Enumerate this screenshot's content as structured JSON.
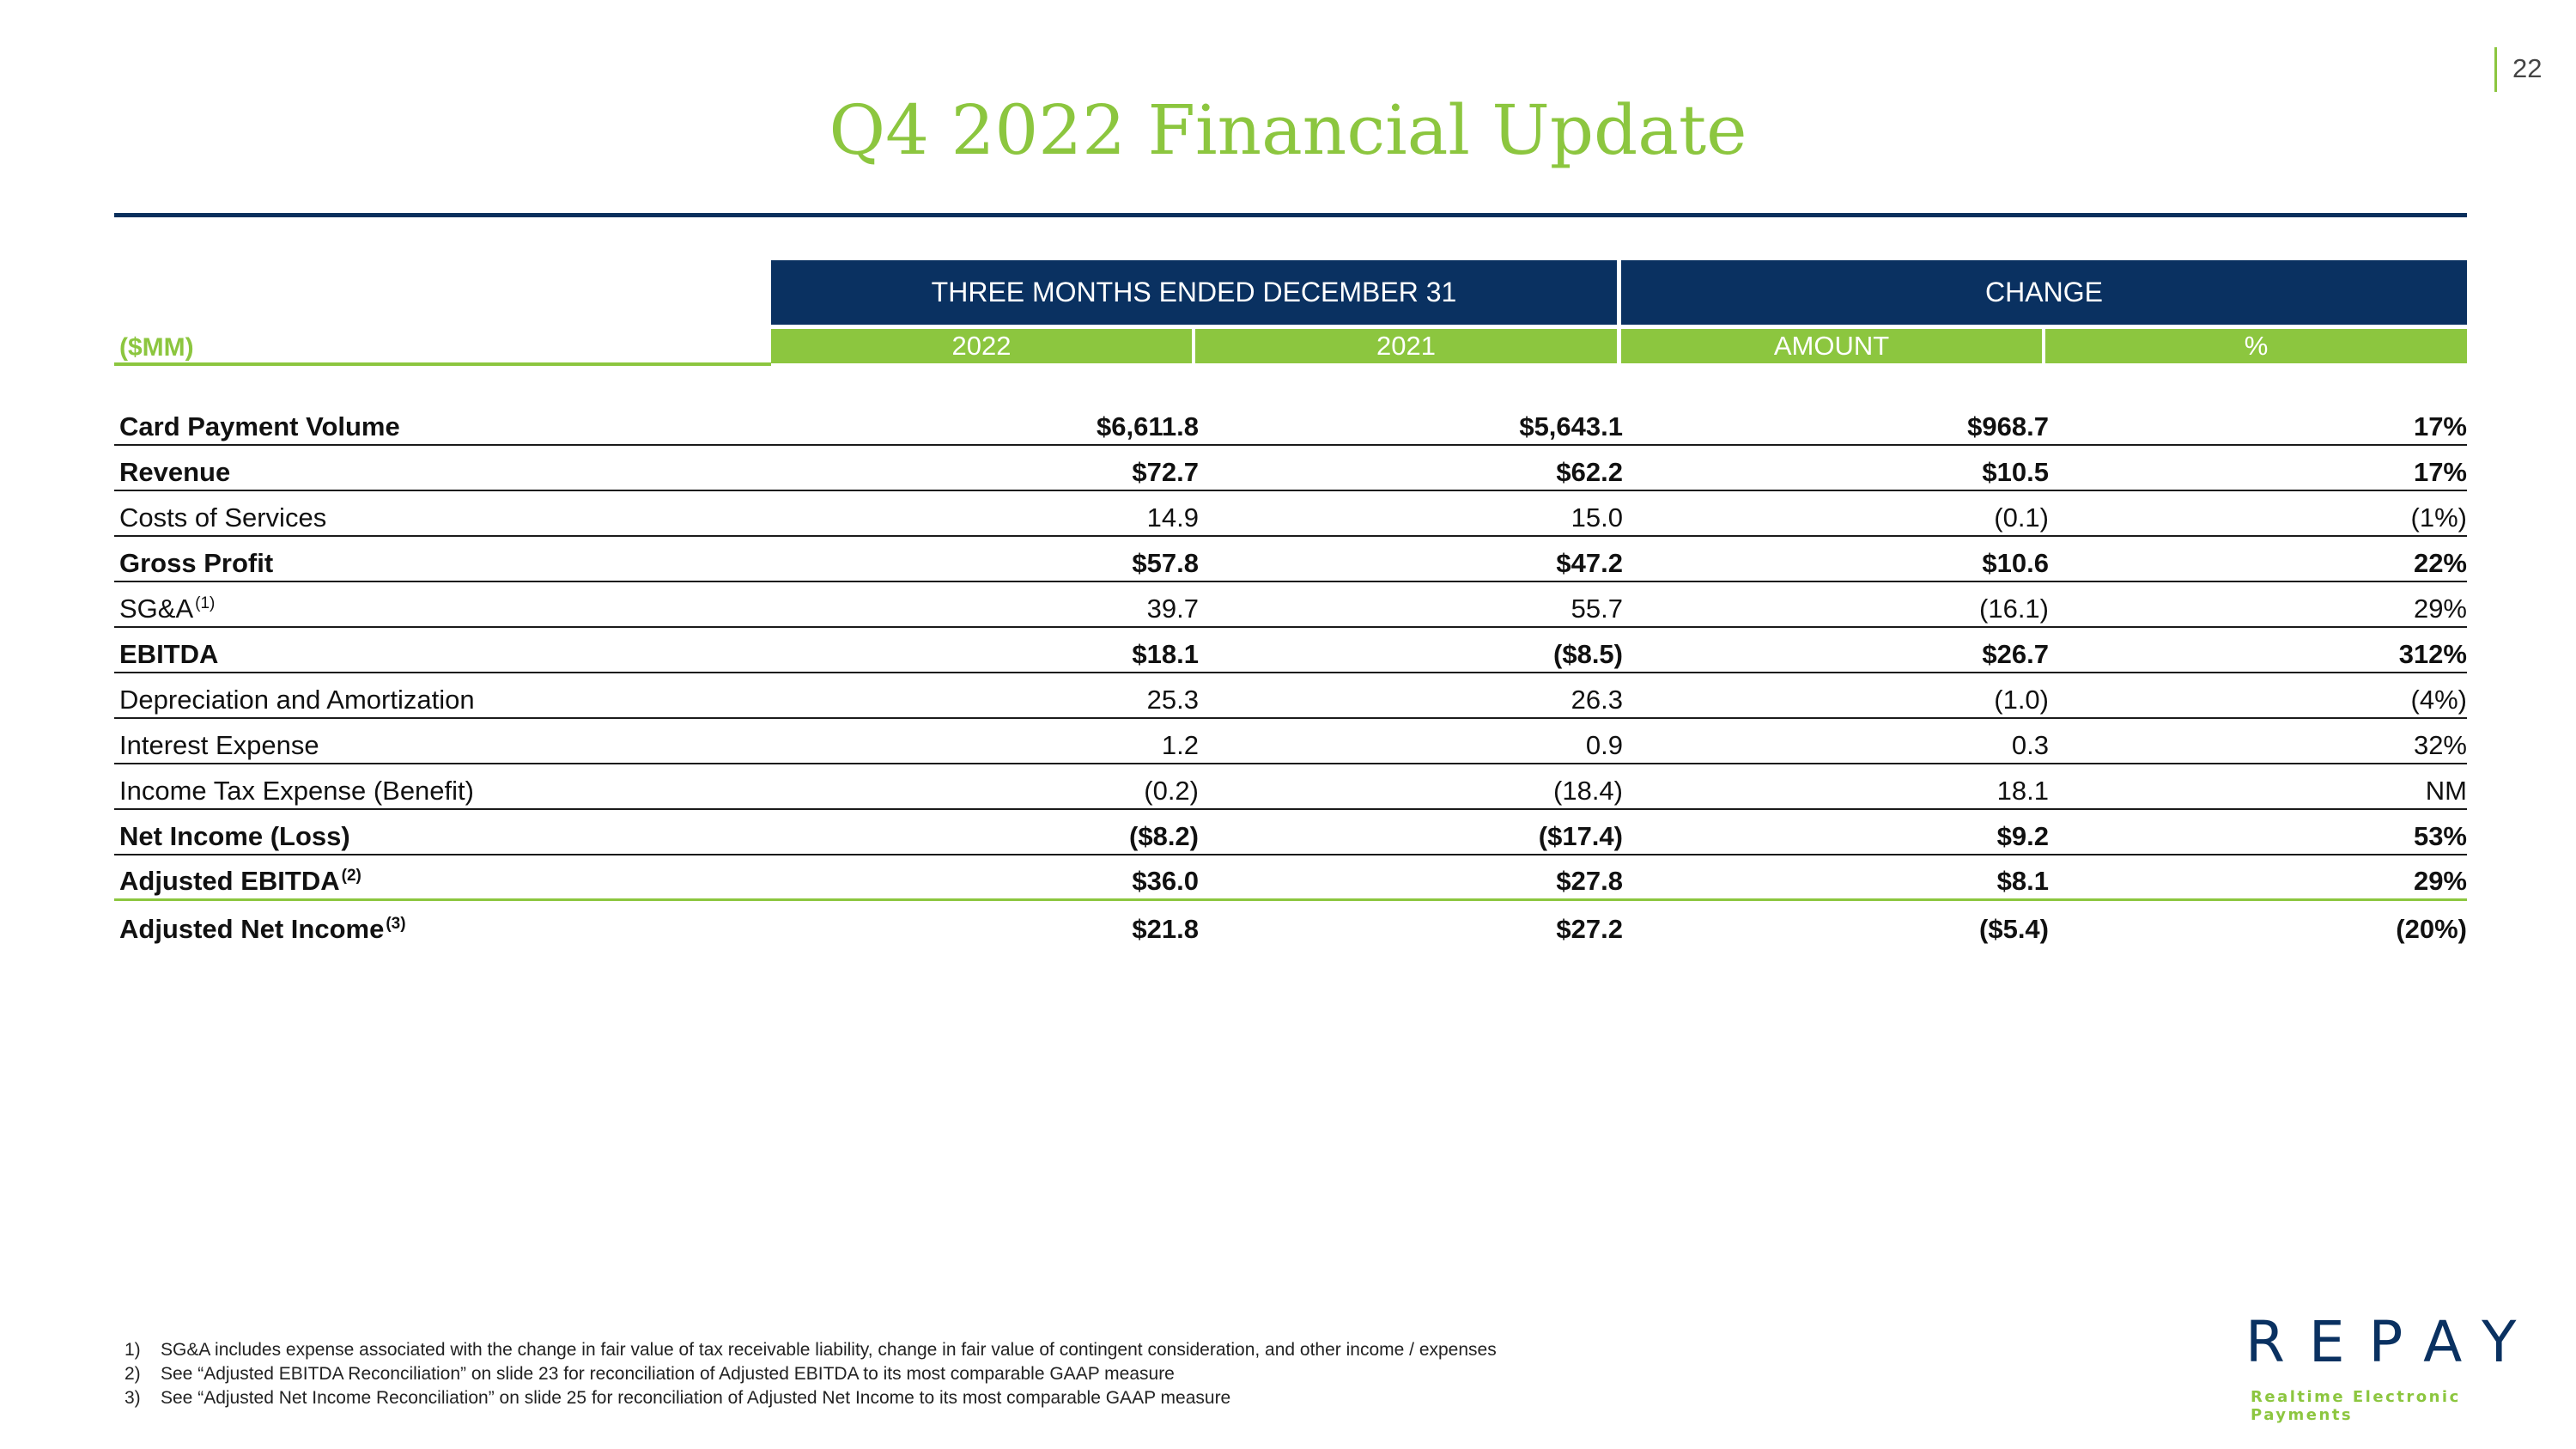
{
  "page_number": "22",
  "title": "Q4 2022 Financial Update",
  "header": {
    "group1": "THREE MONTHS ENDED DECEMBER 31",
    "group2": "CHANGE",
    "units": "($MM)",
    "col_2022": "2022",
    "col_2021": "2021",
    "col_amount": "AMOUNT",
    "col_pct": "%"
  },
  "rows": [
    {
      "label": "Card Payment Volume",
      "sup": "",
      "v2022": "$6,611.8",
      "v2021": "$5,643.1",
      "amount": "$968.7",
      "pct": "17%"
    },
    {
      "label": "Revenue",
      "sup": "",
      "v2022": "$72.7",
      "v2021": "$62.2",
      "amount": "$10.5",
      "pct": "17%"
    },
    {
      "label": "Costs of Services",
      "sup": "",
      "v2022": "14.9",
      "v2021": "15.0",
      "amount": "(0.1)",
      "pct": "(1%)"
    },
    {
      "label": "Gross Profit",
      "sup": "",
      "v2022": "$57.8",
      "v2021": "$47.2",
      "amount": "$10.6",
      "pct": "22%"
    },
    {
      "label": "SG&A",
      "sup": "(1)",
      "v2022": "39.7",
      "v2021": "55.7",
      "amount": "(16.1)",
      "pct": "29%"
    },
    {
      "label": "EBITDA",
      "sup": "",
      "v2022": "$18.1",
      "v2021": "($8.5)",
      "amount": "$26.7",
      "pct": "312%"
    },
    {
      "label": "Depreciation and Amortization",
      "sup": "",
      "v2022": "25.3",
      "v2021": "26.3",
      "amount": "(1.0)",
      "pct": "(4%)"
    },
    {
      "label": "Interest Expense",
      "sup": "",
      "v2022": "1.2",
      "v2021": "0.9",
      "amount": "0.3",
      "pct": "32%"
    },
    {
      "label": "Income Tax Expense (Benefit)",
      "sup": "",
      "v2022": "(0.2)",
      "v2021": "(18.4)",
      "amount": "18.1",
      "pct": "NM"
    },
    {
      "label": "Net Income (Loss)",
      "sup": "",
      "v2022": "($8.2)",
      "v2021": "($17.4)",
      "amount": "$9.2",
      "pct": "53%"
    },
    {
      "label": "Adjusted EBITDA",
      "sup": "(2)",
      "v2022": "$36.0",
      "v2021": "$27.8",
      "amount": "$8.1",
      "pct": "29%"
    },
    {
      "label": "Adjusted Net Income",
      "sup": "(3)",
      "v2022": "$21.8",
      "v2021": "$27.2",
      "amount": "($5.4)",
      "pct": "(20%)"
    }
  ],
  "footnotes": [
    {
      "num": "1)",
      "text": "SG&A includes expense associated with the change in fair value of tax receivable liability, change in fair value of contingent consideration, and other income / expenses"
    },
    {
      "num": "2)",
      "text": "See “Adjusted EBITDA Reconciliation” on slide 23 for reconciliation of Adjusted EBITDA to its most comparable GAAP measure"
    },
    {
      "num": "3)",
      "text": "See “Adjusted Net Income Reconciliation” on slide 25 for reconciliation of Adjusted Net Income to its most comparable GAAP measure"
    }
  ],
  "logo": {
    "word": "REPAY",
    "tagline": "Realtime Electronic Payments"
  },
  "colors": {
    "brand_green": "#8cc63f",
    "brand_navy": "#0a3161"
  }
}
